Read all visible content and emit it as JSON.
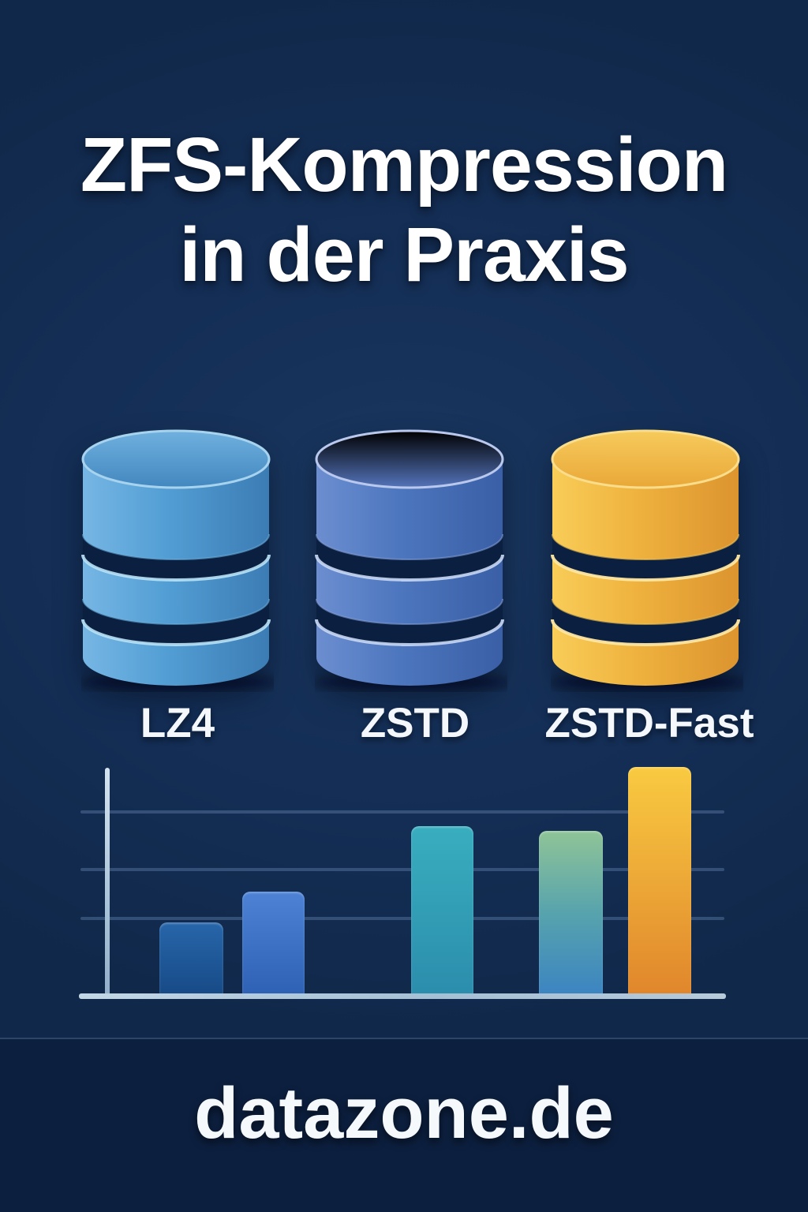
{
  "title": {
    "line1": "ZFS-Kompression",
    "line2": "in der Praxis"
  },
  "cylinders": [
    {
      "label": "LZ4",
      "base_color": "#4f9ccf"
    },
    {
      "label": "ZSTD",
      "base_color": "#4a72b8"
    },
    {
      "label": "ZSTD-Fast",
      "base_color": "#eeb43e"
    }
  ],
  "chart_data": {
    "type": "bar",
    "title": "",
    "xlabel": "",
    "ylabel": "",
    "categories": [
      "",
      "",
      "",
      "",
      ""
    ],
    "values_pct_of_max": [
      32,
      45.5,
      74,
      72,
      100
    ],
    "ylim": [
      0,
      100
    ],
    "grid": true,
    "gridline_count": 3,
    "legend_position": "none",
    "axis_color": "#aac3d8",
    "bar_colors": [
      {
        "top": "#2766aa",
        "bottom": "#174a86"
      },
      {
        "top": "#4d82d4",
        "bottom": "#2e61b4"
      },
      {
        "top": "#39aebf",
        "bottom": "#2b8dac"
      },
      {
        "top": "#8fc497",
        "mid": "#57a3ad",
        "bottom": "#3b84c2"
      },
      {
        "top": "#f9ca41",
        "bottom": "#e0862c"
      }
    ]
  },
  "footer": {
    "text": "datazone.de"
  },
  "colors": {
    "background": "#142e56",
    "footer_background": "#0c1f3e",
    "text": "#ffffff",
    "gap_band": "#0b2040"
  }
}
